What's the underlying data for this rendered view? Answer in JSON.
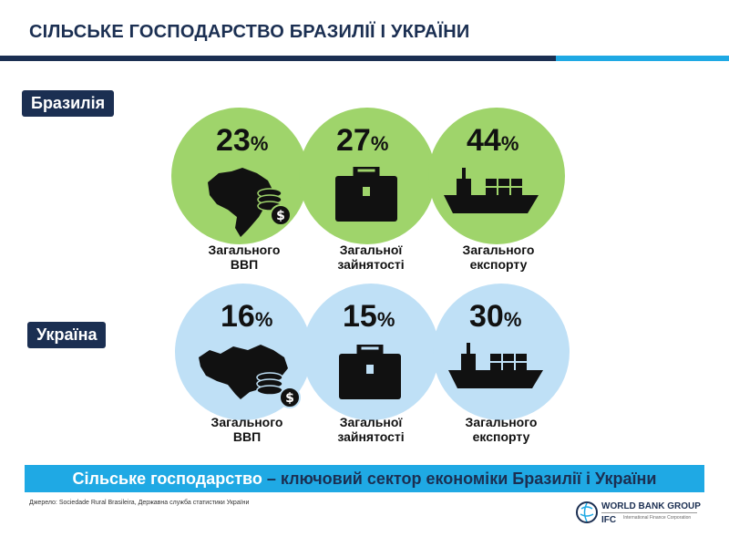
{
  "title": "СІЛЬСЬКЕ ГОСПОДАРСТВО БРАЗИЛІЇ І УКРАЇНИ",
  "colors": {
    "navy": "#1b2f52",
    "accent_blue": "#1fa9e4",
    "brazil_circle": "#9fd46b",
    "ukraine_circle": "#bfe0f6"
  },
  "brazil": {
    "label": "Бразилія",
    "stats": [
      {
        "value": "23",
        "unit": "%",
        "caption_line1": "Загального",
        "caption_line2": "ВВП",
        "icon": "brazil-map-money-icon"
      },
      {
        "value": "27",
        "unit": "%",
        "caption_line1": "Загальної",
        "caption_line2": "зайнятості",
        "icon": "briefcase-icon"
      },
      {
        "value": "44",
        "unit": "%",
        "caption_line1": "Загального",
        "caption_line2": "експорту",
        "icon": "cargo-ship-icon"
      }
    ]
  },
  "ukraine": {
    "label": "Україна",
    "stats": [
      {
        "value": "16",
        "unit": "%",
        "caption_line1": "Загального",
        "caption_line2": "ВВП",
        "icon": "ukraine-map-money-icon"
      },
      {
        "value": "15",
        "unit": "%",
        "caption_line1": "Загальної",
        "caption_line2": "зайнятості",
        "icon": "briefcase-icon"
      },
      {
        "value": "30",
        "unit": "%",
        "caption_line1": "Загального",
        "caption_line2": "експорту",
        "icon": "cargo-ship-icon"
      }
    ]
  },
  "banner": {
    "highlight": "Сільське господарство",
    "rest": " – ключовий сектор економіки Бразилії і України"
  },
  "source": "Джерело: Sociedade Rural Brasileira, Державна служба статистики України",
  "logo": {
    "world_bank": "WORLD BANK GROUP",
    "ifc": "IFC",
    "ifc_sub": "International Finance Corporation"
  }
}
